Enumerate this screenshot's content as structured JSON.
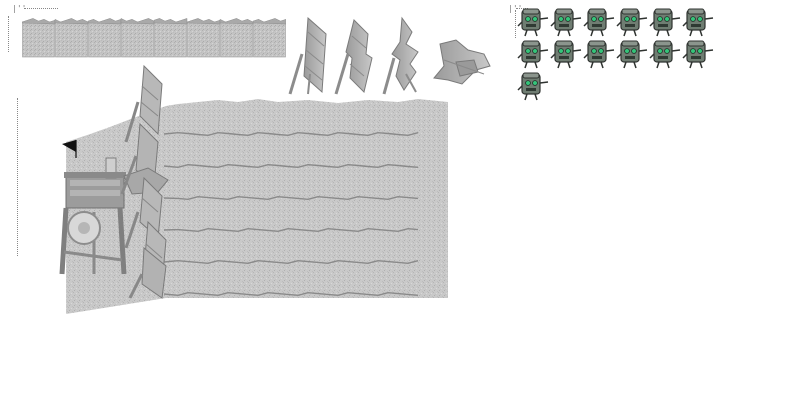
{
  "sheet_markers": {
    "tiles_marker": "|''",
    "zombie_marker": "|''"
  },
  "terrain_tiles": {
    "count": 8,
    "color": "#c4c4c4"
  },
  "barricade_frames": {
    "count": 4,
    "states": [
      "intact",
      "damaged",
      "broken",
      "destroyed"
    ]
  },
  "battlefield": {
    "lanes": 6,
    "ground_color": "#c9c9c9",
    "flag_color": "#111111",
    "barricades_on_field": 5
  },
  "zombie_sheet": {
    "frames": 13,
    "columns": 6,
    "body_color": "#6f7d72",
    "eye_color": "#35c47a"
  }
}
